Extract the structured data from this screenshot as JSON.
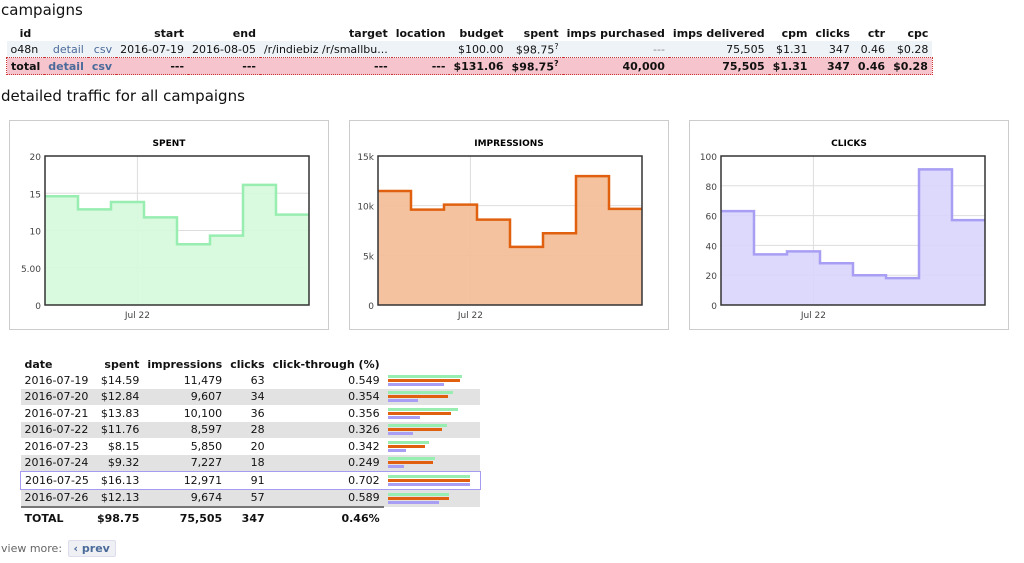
{
  "campaigns": {
    "title": "campaigns",
    "headers": [
      "id",
      "",
      "",
      "start",
      "end",
      "target",
      "location",
      "budget",
      "spent",
      "imps purchased",
      "imps delivered",
      "cpm",
      "clicks",
      "ctr",
      "cpc"
    ],
    "row": {
      "id": "o48n",
      "detail": "detail",
      "csv": "csv",
      "start": "2016-07-19",
      "end": "2016-08-05",
      "target": "/r/indiebiz /r/smallbu...",
      "location": "",
      "budget": "$100.00",
      "spent": "$98.75",
      "spent_mark": "?",
      "imps_purchased": "---",
      "imps_delivered": "75,505",
      "cpm": "$1.31",
      "clicks": "347",
      "ctr": "0.46",
      "cpc": "$0.28"
    },
    "total": {
      "id": "total",
      "detail": "detail",
      "csv": "csv",
      "start": "---",
      "end": "---",
      "target": "---",
      "location": "---",
      "budget": "$131.06",
      "spent": "$98.75",
      "spent_mark": "?",
      "imps_purchased": "40,000",
      "imps_delivered": "75,505",
      "cpm": "$1.31",
      "clicks": "347",
      "ctr": "0.46",
      "cpc": "$0.28"
    }
  },
  "traffic_title": "detailed traffic for all campaigns",
  "chart_data": [
    {
      "type": "area",
      "title": "SPENT",
      "x": [
        "2016-07-19",
        "2016-07-20",
        "2016-07-21",
        "2016-07-22",
        "2016-07-23",
        "2016-07-24",
        "2016-07-25",
        "2016-07-26"
      ],
      "values": [
        14.59,
        12.84,
        13.83,
        11.76,
        8.15,
        9.32,
        16.13,
        12.13
      ],
      "ylim": [
        0,
        20
      ],
      "yticks": [
        "0",
        "5.00",
        "10",
        "15",
        "20"
      ],
      "xticks": [
        "Jul 22"
      ],
      "grid": true,
      "line": "#98eeb0",
      "fill": "#d5fadc"
    },
    {
      "type": "area",
      "title": "IMPRESSIONS",
      "x": [
        "2016-07-19",
        "2016-07-20",
        "2016-07-21",
        "2016-07-22",
        "2016-07-23",
        "2016-07-24",
        "2016-07-25",
        "2016-07-26"
      ],
      "values": [
        11479,
        9607,
        10100,
        8597,
        5850,
        7227,
        12971,
        9674
      ],
      "ylim": [
        0,
        15000
      ],
      "yticks": [
        "0",
        "5k",
        "10k",
        "15k"
      ],
      "xticks": [
        "Jul 22"
      ],
      "grid": true,
      "line": "#e0600f",
      "fill": "#f3bb93"
    },
    {
      "type": "area",
      "title": "CLICKS",
      "x": [
        "2016-07-19",
        "2016-07-20",
        "2016-07-21",
        "2016-07-22",
        "2016-07-23",
        "2016-07-24",
        "2016-07-25",
        "2016-07-26"
      ],
      "values": [
        63,
        34,
        36,
        28,
        20,
        18,
        91,
        57
      ],
      "ylim": [
        0,
        100
      ],
      "yticks": [
        "0",
        "20",
        "40",
        "60",
        "80",
        "100"
      ],
      "xticks": [
        "Jul 22"
      ],
      "grid": true,
      "line": "#a89ff4",
      "fill": "#d8d5fc"
    }
  ],
  "traffic": {
    "headers": [
      "date",
      "spent",
      "impressions",
      "clicks",
      "click-through (%)"
    ],
    "rows": [
      {
        "date": "2016-07-19",
        "spent": "$14.59",
        "impressions": "11,479",
        "clicks": "63",
        "ctr": "0.549"
      },
      {
        "date": "2016-07-20",
        "spent": "$12.84",
        "impressions": "9,607",
        "clicks": "34",
        "ctr": "0.354"
      },
      {
        "date": "2016-07-21",
        "spent": "$13.83",
        "impressions": "10,100",
        "clicks": "36",
        "ctr": "0.356"
      },
      {
        "date": "2016-07-22",
        "spent": "$11.76",
        "impressions": "8,597",
        "clicks": "28",
        "ctr": "0.326"
      },
      {
        "date": "2016-07-23",
        "spent": "$8.15",
        "impressions": "5,850",
        "clicks": "20",
        "ctr": "0.342"
      },
      {
        "date": "2016-07-24",
        "spent": "$9.32",
        "impressions": "7,227",
        "clicks": "18",
        "ctr": "0.249"
      },
      {
        "date": "2016-07-25",
        "spent": "$16.13",
        "impressions": "12,971",
        "clicks": "91",
        "ctr": "0.702"
      },
      {
        "date": "2016-07-26",
        "spent": "$12.13",
        "impressions": "9,674",
        "clicks": "57",
        "ctr": "0.589"
      }
    ],
    "total": {
      "date": "TOTAL",
      "spent": "$98.75",
      "impressions": "75,505",
      "clicks": "347",
      "ctr": "0.46%"
    }
  },
  "view_more": {
    "label": "view more:",
    "prev": "‹ prev"
  }
}
